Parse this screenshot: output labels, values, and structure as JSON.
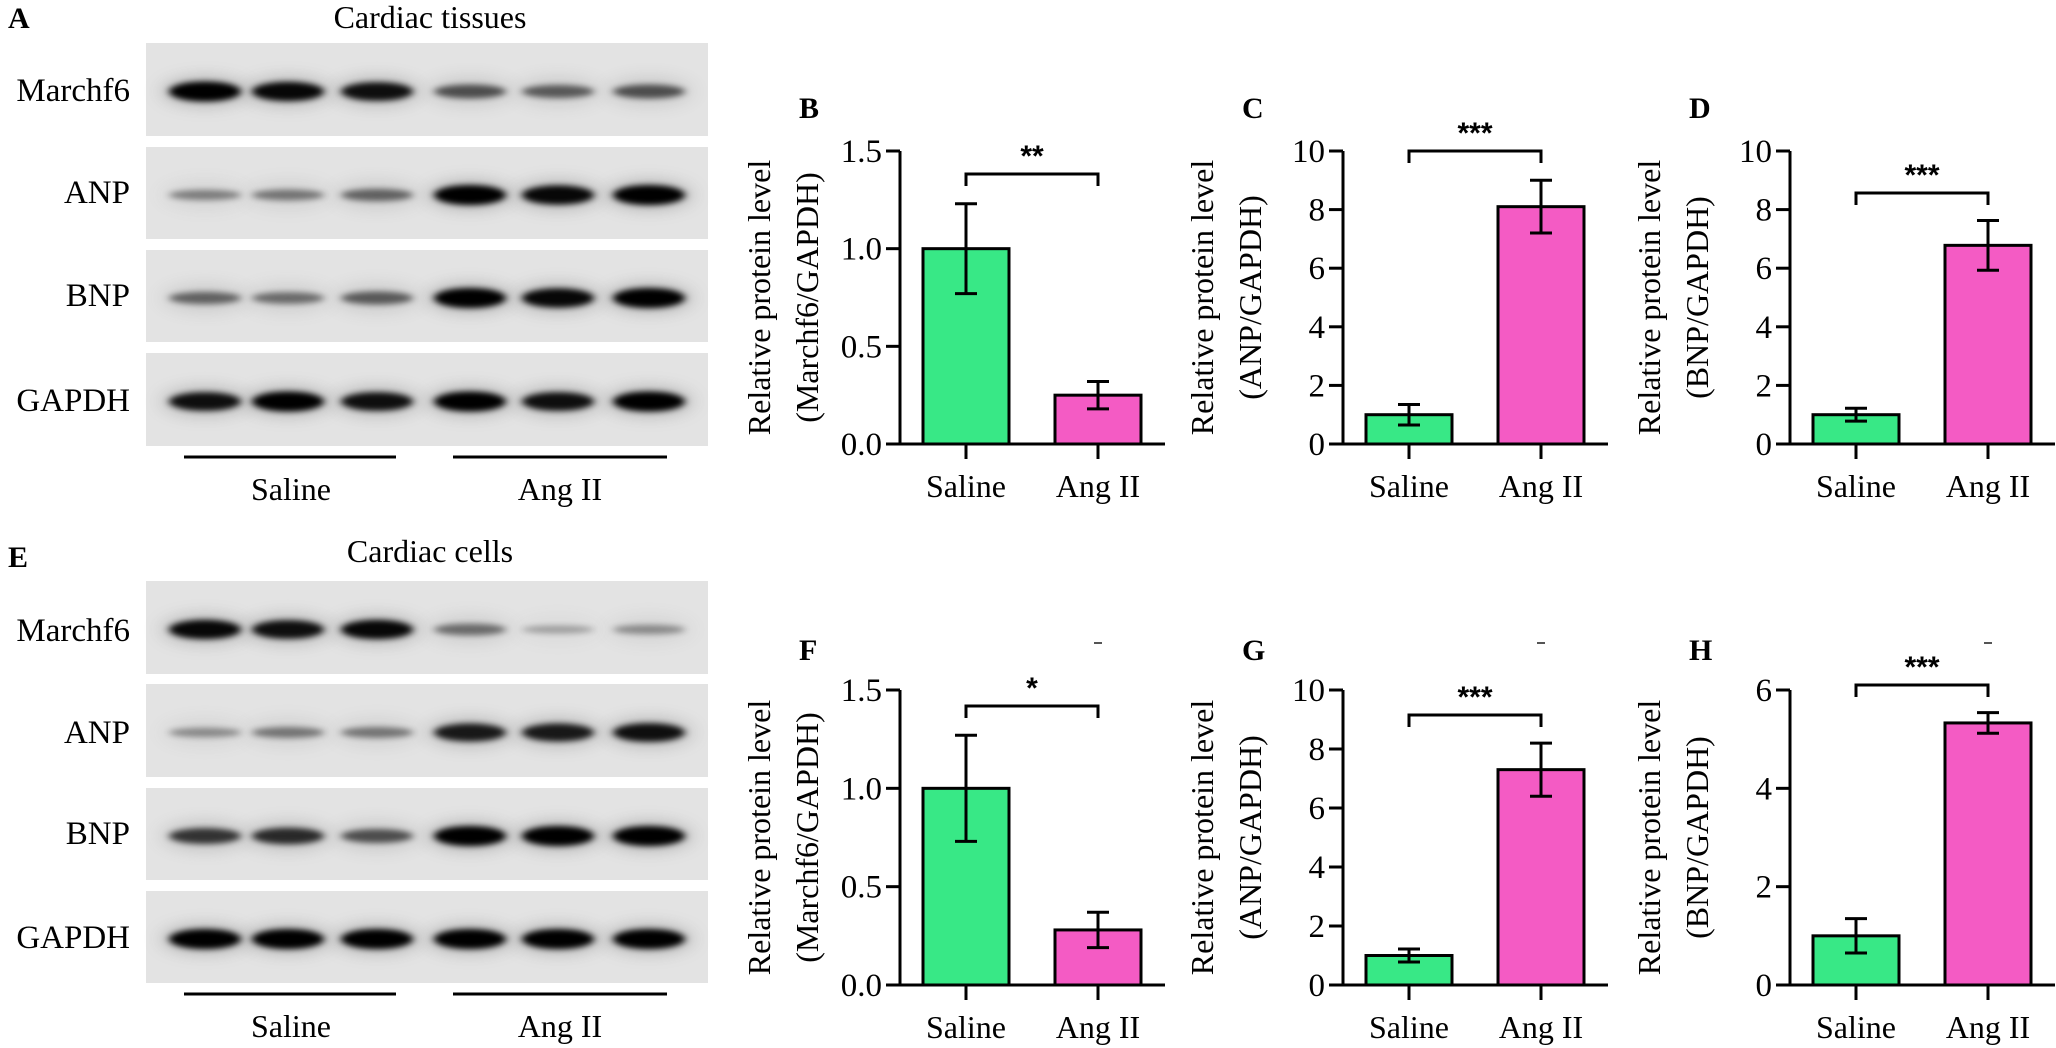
{
  "blots": [
    {
      "panel": "A",
      "title": "Cardiac tissues",
      "groups": [
        "Saline",
        "Ang II"
      ],
      "rows": [
        {
          "label": "Marchf6",
          "band_intensity": [
            1.0,
            0.95,
            0.9,
            0.55,
            0.5,
            0.55
          ]
        },
        {
          "label": "ANP",
          "band_intensity": [
            0.3,
            0.35,
            0.45,
            1.0,
            0.95,
            1.0
          ]
        },
        {
          "label": "BNP",
          "band_intensity": [
            0.45,
            0.4,
            0.5,
            1.0,
            0.95,
            1.0
          ]
        },
        {
          "label": "GAPDH",
          "band_intensity": [
            0.9,
            1.0,
            0.9,
            1.0,
            0.9,
            1.0
          ]
        }
      ]
    },
    {
      "panel": "E",
      "title": "Cardiac cells",
      "groups": [
        "Saline",
        "Ang II"
      ],
      "rows": [
        {
          "label": "Marchf6",
          "band_intensity": [
            0.95,
            0.9,
            0.95,
            0.4,
            0.15,
            0.25
          ]
        },
        {
          "label": "ANP",
          "band_intensity": [
            0.25,
            0.35,
            0.35,
            0.85,
            0.85,
            0.9
          ]
        },
        {
          "label": "BNP",
          "band_intensity": [
            0.7,
            0.75,
            0.55,
            1.0,
            1.0,
            1.0
          ]
        },
        {
          "label": "GAPDH",
          "band_intensity": [
            1.0,
            1.0,
            1.0,
            1.0,
            1.0,
            1.0
          ]
        }
      ]
    }
  ],
  "colors": {
    "saline": "#38e886",
    "ang_ii": "#f45bc4"
  },
  "chart_data": [
    {
      "panel": "B",
      "type": "bar",
      "ylabel": [
        "Relative protein level",
        "(Marchf6/GAPDH)"
      ],
      "categories": [
        "Saline",
        "Ang II"
      ],
      "values": [
        1.0,
        0.25
      ],
      "errors": [
        0.23,
        0.07
      ],
      "ylim": [
        0,
        1.5
      ],
      "yticks": [
        "0.0",
        "0.5",
        "1.0",
        "1.5"
      ],
      "significance": "**",
      "grid": false
    },
    {
      "panel": "C",
      "type": "bar",
      "ylabel": [
        "Relative protein level",
        "(ANP/GAPDH)"
      ],
      "categories": [
        "Saline",
        "Ang II"
      ],
      "values": [
        1.0,
        8.1
      ],
      "errors": [
        0.35,
        0.9
      ],
      "ylim": [
        0,
        10
      ],
      "yticks": [
        "0",
        "2",
        "4",
        "6",
        "8",
        "10"
      ],
      "significance": "***",
      "grid": false
    },
    {
      "panel": "D",
      "type": "bar",
      "ylabel": [
        "Relative protein level",
        "(BNP/GAPDH)"
      ],
      "categories": [
        "Saline",
        "Ang II"
      ],
      "values": [
        1.0,
        6.78
      ],
      "errors": [
        0.22,
        0.85
      ],
      "ylim": [
        0,
        10
      ],
      "yticks": [
        "0",
        "2",
        "4",
        "6",
        "8",
        "10"
      ],
      "significance": "***",
      "grid": false
    },
    {
      "panel": "F",
      "type": "bar",
      "ylabel": [
        "Relative protein level",
        "(Marchf6/GAPDH)"
      ],
      "categories": [
        "Saline",
        "Ang II"
      ],
      "values": [
        1.0,
        0.28
      ],
      "errors": [
        0.27,
        0.09
      ],
      "ylim": [
        0,
        1.5
      ],
      "yticks": [
        "0.0",
        "0.5",
        "1.0",
        "1.5"
      ],
      "significance": "*",
      "grid": false
    },
    {
      "panel": "G",
      "type": "bar",
      "ylabel": [
        "Relative protein level",
        "(ANP/GAPDH)"
      ],
      "categories": [
        "Saline",
        "Ang II"
      ],
      "values": [
        1.0,
        7.3
      ],
      "errors": [
        0.22,
        0.9
      ],
      "ylim": [
        0,
        10
      ],
      "yticks": [
        "0",
        "2",
        "4",
        "6",
        "8",
        "10"
      ],
      "significance": "***",
      "grid": false
    },
    {
      "panel": "H",
      "type": "bar",
      "ylabel": [
        "Relative protein level",
        "(BNP/GAPDH)"
      ],
      "categories": [
        "Saline",
        "Ang II"
      ],
      "values": [
        1.0,
        5.33
      ],
      "errors": [
        0.35,
        0.21
      ],
      "ylim": [
        0,
        6
      ],
      "yticks": [
        "0",
        "2",
        "4",
        "6"
      ],
      "significance": "***",
      "grid": false
    }
  ]
}
